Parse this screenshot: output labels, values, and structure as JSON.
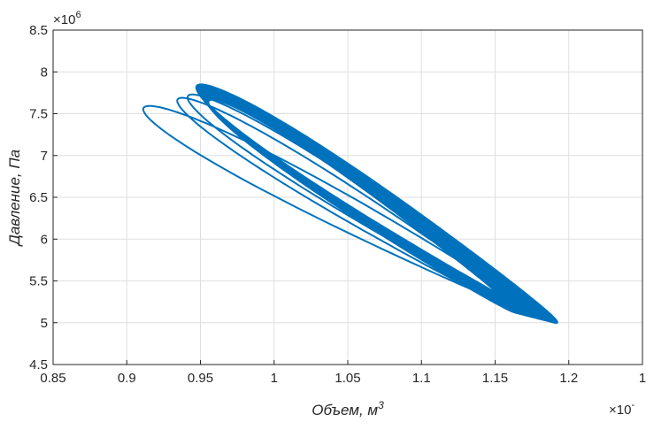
{
  "chart_data": {
    "type": "line",
    "xlabel": "Объем, м",
    "xlabel_sup": "3",
    "ylabel": "Давление, Па",
    "xlim": [
      0.85,
      1.2
    ],
    "ylim": [
      4.5,
      8.5
    ],
    "x_ticks": [
      "0.85",
      "0.9",
      "0.95",
      "1",
      "1.05",
      "1.1",
      "1.15",
      "1.2",
      "1"
    ],
    "y_ticks": [
      "4.5",
      "5",
      "5.5",
      "6",
      "6.5",
      "7",
      "7.5",
      "8",
      "8.5"
    ],
    "x_multiplier": "×10",
    "x_multiplier_exp": "-",
    "y_multiplier": "×10",
    "y_multiplier_exp": "6",
    "grid": true,
    "series_color": "#0072BD",
    "orbit": {
      "center": [
        1.07,
        6.42
      ],
      "transients": [
        {
          "vmin": 0.912,
          "vmax": 1.175,
          "pmin": 5.13,
          "pmax": 7.58
        },
        {
          "vmin": 0.935,
          "vmax": 1.172,
          "pmin": 5.1,
          "pmax": 7.68
        },
        {
          "vmin": 0.942,
          "vmax": 1.18,
          "pmin": 5.06,
          "pmax": 7.72
        }
      ],
      "settled_band": {
        "vmin": [
          0.948,
          0.956
        ],
        "vmax": [
          1.165,
          1.192
        ],
        "pmin": [
          5.0,
          5.12
        ],
        "pmax": [
          7.66,
          7.84
        ]
      }
    }
  }
}
